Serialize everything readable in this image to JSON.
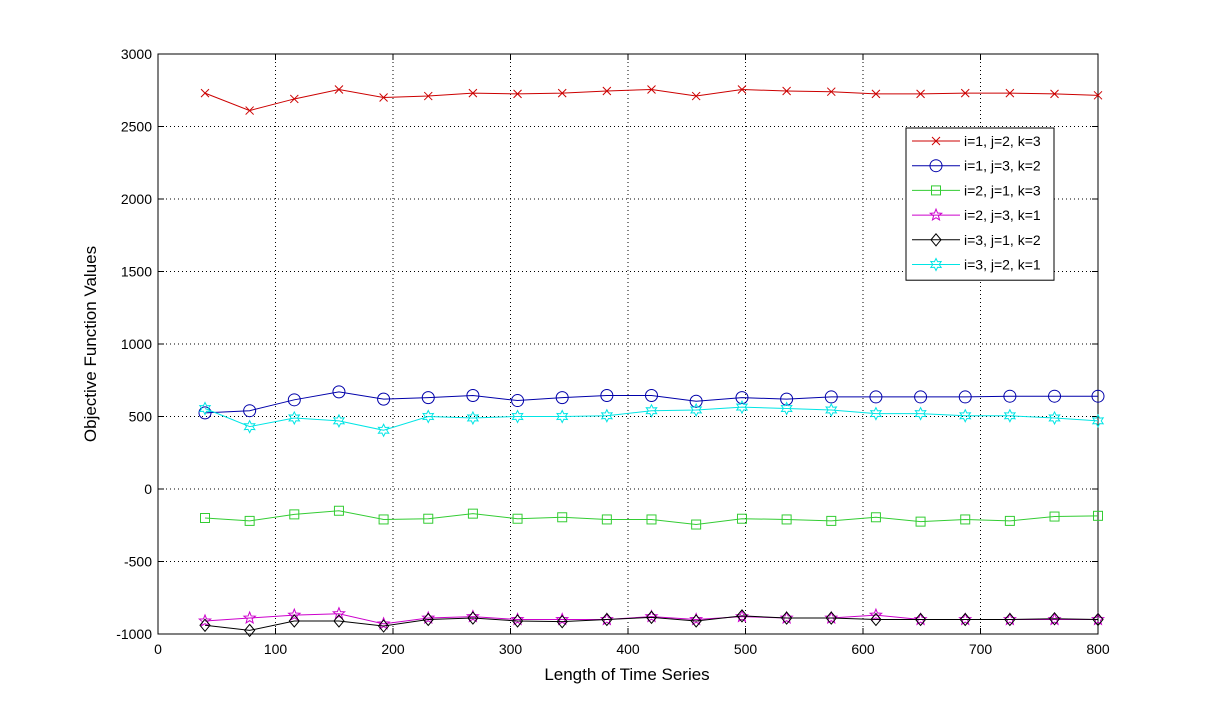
{
  "chart_data": {
    "type": "line",
    "title": "",
    "xlabel": "Length of Time Series",
    "ylabel": "Objective Function Values",
    "xlim": [
      0,
      800
    ],
    "ylim": [
      -1000,
      3000
    ],
    "xticks": [
      0,
      100,
      200,
      300,
      400,
      500,
      600,
      700,
      800
    ],
    "yticks": [
      -1000,
      -500,
      0,
      500,
      1000,
      1500,
      2000,
      2500,
      3000
    ],
    "grid": true,
    "legend_position": "upper right",
    "x": [
      40,
      78,
      116,
      154,
      192,
      230,
      268,
      306,
      344,
      382,
      420,
      458,
      497,
      535,
      573,
      611,
      649,
      687,
      725,
      763,
      800
    ],
    "series": [
      {
        "name": "i=1, j=2, k=3",
        "color": "#cc0000",
        "marker": "x",
        "values": [
          2730,
          2610,
          2690,
          2755,
          2700,
          2710,
          2730,
          2725,
          2730,
          2745,
          2755,
          2710,
          2755,
          2745,
          2740,
          2725,
          2725,
          2730,
          2730,
          2725,
          2715
        ]
      },
      {
        "name": "i=1, j=3, k=2",
        "color": "#0000aa",
        "marker": "circle",
        "values": [
          525,
          540,
          615,
          670,
          620,
          630,
          645,
          610,
          630,
          645,
          645,
          605,
          630,
          620,
          635,
          635,
          635,
          635,
          640,
          640,
          640
        ]
      },
      {
        "name": "i=2, j=1, k=3",
        "color": "#33cc33",
        "marker": "square",
        "values": [
          -200,
          -220,
          -175,
          -150,
          -210,
          -205,
          -170,
          -205,
          -195,
          -210,
          -210,
          -245,
          -205,
          -210,
          -220,
          -195,
          -225,
          -210,
          -220,
          -190,
          -185
        ]
      },
      {
        "name": "i=2, j=3, k=1",
        "color": "#cc00cc",
        "marker": "star",
        "values": [
          -910,
          -890,
          -870,
          -860,
          -930,
          -890,
          -880,
          -900,
          -900,
          -900,
          -880,
          -900,
          -880,
          -890,
          -890,
          -870,
          -900,
          -900,
          -900,
          -900,
          -900
        ]
      },
      {
        "name": "i=3, j=1, k=2",
        "color": "#000000",
        "marker": "diamond",
        "values": [
          -940,
          -975,
          -910,
          -910,
          -945,
          -900,
          -890,
          -910,
          -915,
          -900,
          -885,
          -910,
          -875,
          -890,
          -890,
          -900,
          -900,
          -900,
          -900,
          -895,
          -900
        ]
      },
      {
        "name": "i=3, j=2, k=1",
        "color": "#00e5e5",
        "marker": "hexagram",
        "values": [
          555,
          430,
          490,
          470,
          405,
          500,
          490,
          500,
          500,
          505,
          540,
          545,
          565,
          555,
          545,
          520,
          520,
          505,
          505,
          490,
          470
        ]
      }
    ]
  }
}
